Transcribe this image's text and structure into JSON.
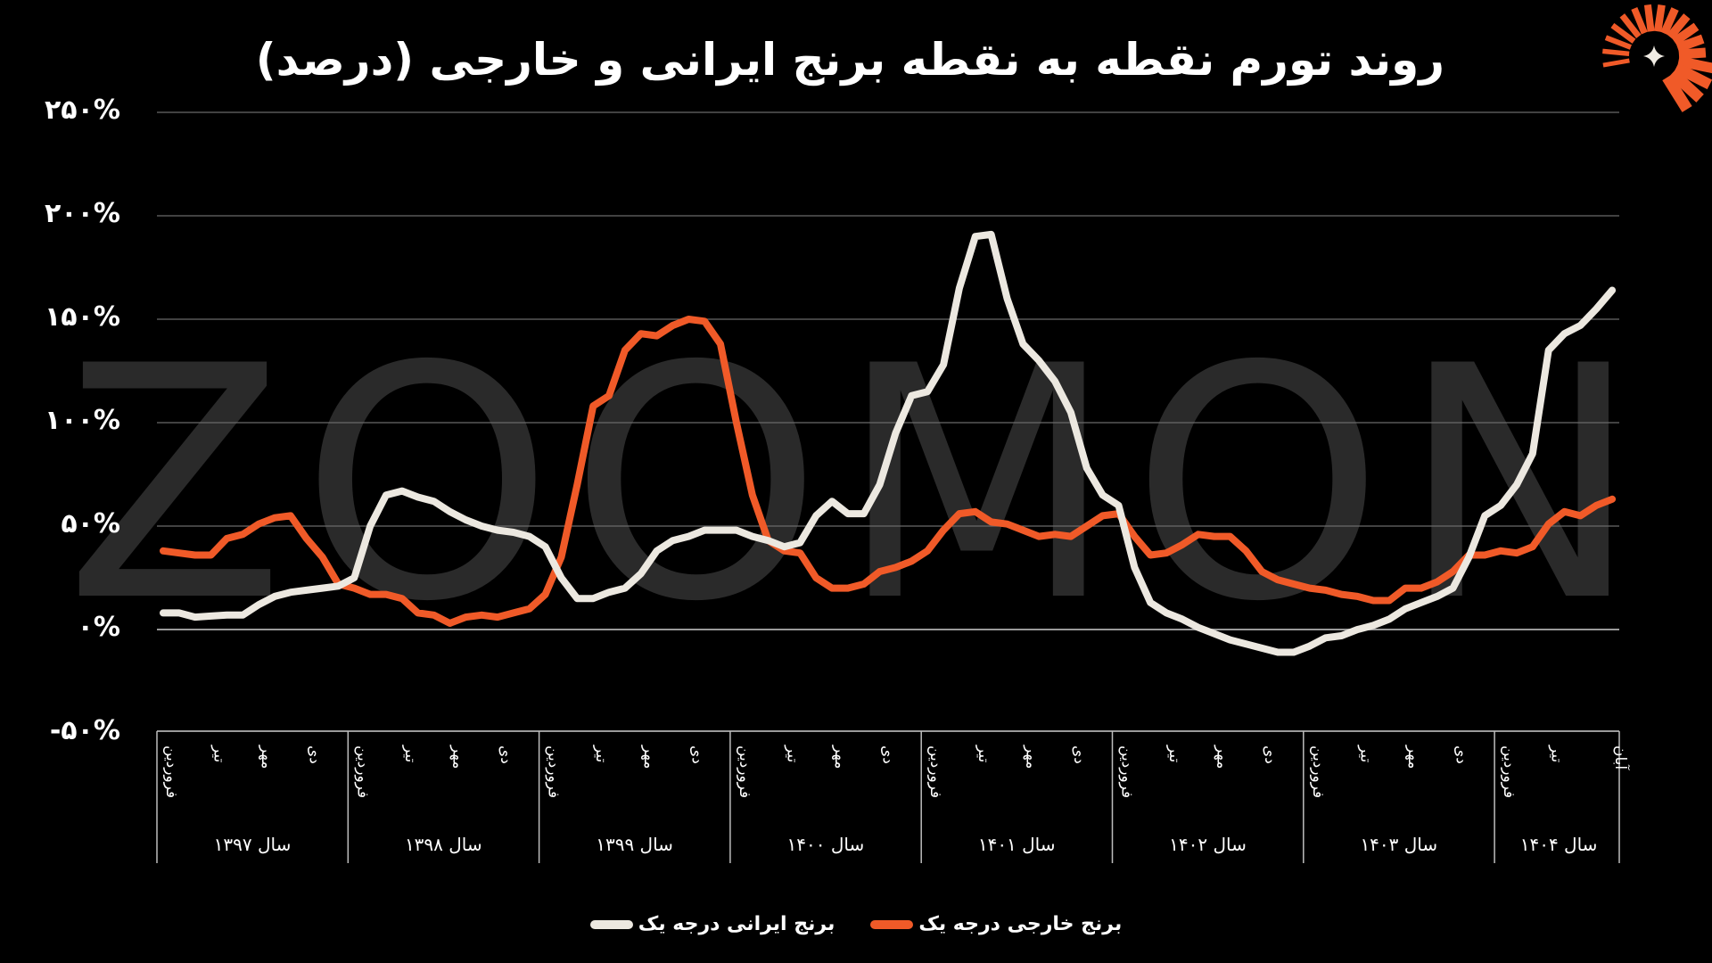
{
  "title": "روند تورم نقطه به نقطه برنج ایرانی و خارجی (درصد)",
  "logo": {
    "icon": "sunburst-star-logo-icon",
    "ray_color": "#f05a28",
    "star_color": "#f0ece4"
  },
  "watermark": "ZOOMON",
  "colors": {
    "background": "#000000",
    "iranian": "#ece8e0",
    "foreign": "#f05a28",
    "grid": "#6a6a6a",
    "watermark": "#2a2a2a"
  },
  "legend": [
    {
      "label": "برنج خارجی درجه یک",
      "color": "#f05a28"
    },
    {
      "label": "برنج ایرانی درجه یک",
      "color": "#ece8e0"
    }
  ],
  "y_ticks": [
    "۲۵۰%",
    "۲۰۰%",
    "۱۵۰%",
    "۱۰۰%",
    "۵۰%",
    "۰%",
    "-۵۰%"
  ],
  "years": [
    {
      "label": "سال ۱۳۹۷",
      "months": [
        "فروردین",
        "تیر",
        "مهر",
        "دی"
      ]
    },
    {
      "label": "سال ۱۳۹۸",
      "months": [
        "فروردین",
        "تیر",
        "مهر",
        "دی"
      ]
    },
    {
      "label": "سال ۱۳۹۹",
      "months": [
        "فروردین",
        "تیر",
        "مهر",
        "دی"
      ]
    },
    {
      "label": "سال ۱۴۰۰",
      "months": [
        "فروردین",
        "تیر",
        "مهر",
        "دی"
      ]
    },
    {
      "label": "سال ۱۴۰۱",
      "months": [
        "فروردین",
        "تیر",
        "مهر",
        "دی"
      ]
    },
    {
      "label": "سال ۱۴۰۲",
      "months": [
        "فروردین",
        "تیر",
        "مهر",
        "دی"
      ]
    },
    {
      "label": "سال ۱۴۰۳",
      "months": [
        "فروردین",
        "تیر",
        "مهر",
        "دی"
      ]
    },
    {
      "label": "سال ۱۴۰۴",
      "months": [
        "فروردین",
        "تیر",
        "آبان"
      ]
    }
  ],
  "chart_data": {
    "type": "line",
    "title": "روند تورم نقطه به نقطه برنج ایرانی و خارجی (درصد)",
    "xlabel": "",
    "ylabel": "",
    "ylim": [
      -50,
      250
    ],
    "yticks": [
      -50,
      0,
      50,
      100,
      150,
      200,
      250
    ],
    "grid": true,
    "legend_position": "bottom",
    "x_start": "فروردین ۱۳۹۷",
    "x_end": "آبان ۱۴۰۴",
    "x_frequency": "monthly",
    "series": [
      {
        "name": "برنج ایرانی درجه یک",
        "color": "#ece8e0",
        "values": [
          8,
          8,
          6,
          6.5,
          7,
          7,
          12,
          16,
          18,
          19,
          20,
          21,
          25,
          50,
          65,
          67,
          64,
          62,
          57,
          53,
          50,
          48,
          47,
          45,
          40,
          25,
          15,
          15,
          18,
          20,
          27,
          38,
          43,
          45,
          48,
          48,
          48,
          45,
          43,
          40,
          42,
          55,
          62,
          56,
          56,
          70,
          95,
          113,
          115,
          128,
          165,
          190,
          191,
          160,
          138,
          130,
          120,
          105,
          78,
          65,
          60,
          30,
          13,
          8,
          5,
          1,
          -2,
          -5,
          -7,
          -9,
          -11,
          -11,
          -8,
          -4,
          -3,
          0,
          2,
          5,
          10,
          13,
          16,
          20,
          35,
          55,
          60,
          70,
          85,
          135,
          143,
          147,
          155,
          164
        ]
      },
      {
        "name": "برنج خارجی درجه یک",
        "color": "#f05a28",
        "values": [
          38,
          37,
          36,
          36,
          44,
          46,
          51,
          54,
          55,
          44,
          35,
          22,
          20,
          17,
          17,
          15,
          8,
          7,
          3,
          6,
          7,
          6,
          8,
          10,
          17,
          35,
          70,
          108,
          113,
          135,
          143,
          142,
          147,
          150,
          149,
          138,
          100,
          65,
          43,
          38,
          37,
          25,
          20,
          20,
          22,
          28,
          30,
          33,
          38,
          48,
          56,
          57,
          52,
          51,
          48,
          45,
          46,
          45,
          50,
          55,
          56,
          45,
          36,
          37,
          41,
          46,
          45,
          45,
          38,
          28,
          24,
          22,
          20,
          19,
          17,
          16,
          14,
          14,
          20,
          20,
          23,
          28,
          36,
          36,
          38,
          37,
          40,
          51,
          57,
          55,
          60,
          63
        ]
      }
    ]
  }
}
